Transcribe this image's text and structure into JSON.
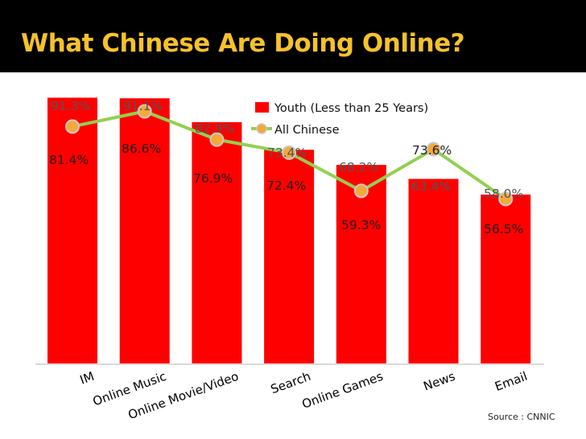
{
  "slide": {
    "title": "What Chinese Are Doing Online?",
    "source": "Source : CNNIC"
  },
  "colors": {
    "background": "#000000",
    "title": "#f6c22a",
    "bar": "#ff0000",
    "line": "#92d050",
    "marker": "#f4a93a",
    "marker_stroke": "#c8c8c8",
    "label": "#555555"
  },
  "chart_data": {
    "type": "bar",
    "title": "",
    "xlabel": "",
    "ylabel": "",
    "ylim": [
      0,
      100
    ],
    "grid": false,
    "legend_position": "top-center",
    "categories": [
      "IM",
      "Online Music",
      "Online Movie/Video",
      "Search",
      "Online Games",
      "News",
      "Email"
    ],
    "series": [
      {
        "name": "Youth (Less than 25 Years)",
        "kind": "bar",
        "values": [
          91.3,
          91.1,
          82.9,
          73.4,
          68.2,
          63.4,
          58.0
        ],
        "labels": [
          "91.3%",
          "91.1%",
          "82.9%",
          "73.4%",
          "68.2%",
          "63.4%",
          "58.0%"
        ]
      },
      {
        "name": "All Chinese",
        "kind": "line",
        "values": [
          81.4,
          86.6,
          76.9,
          72.4,
          59.3,
          73.6,
          56.5
        ],
        "labels": [
          "81.4%",
          "86.6%",
          "76.9%",
          "72.4%",
          "59.3%",
          "73.6%",
          "56.5%"
        ]
      }
    ]
  }
}
